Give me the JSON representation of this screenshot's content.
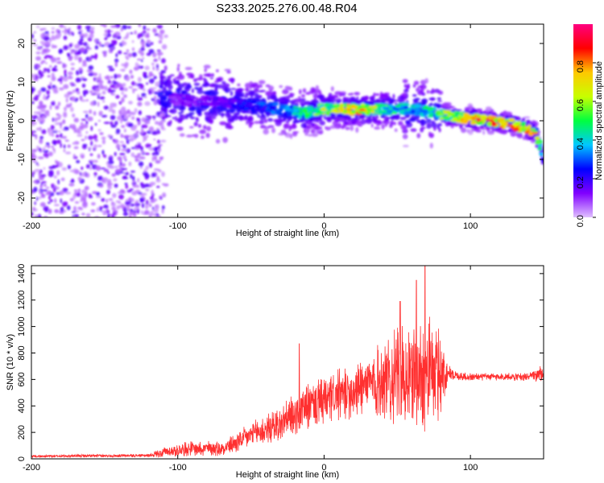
{
  "page_title": "S233.2025.276.00.48.R04",
  "chart_data": [
    {
      "type": "heatmap",
      "xlabel": "Height of straight line (km)",
      "ylabel": "Frequency (Hz)",
      "xlim": [
        -200,
        150
      ],
      "ylim": [
        -25,
        25
      ],
      "x_ticks": [
        -200,
        -100,
        0,
        100
      ],
      "x_tick_labels": [
        "-200",
        "-100",
        "0",
        "100"
      ],
      "y_ticks": [
        -20,
        -10,
        0,
        10,
        20
      ],
      "y_tick_labels": [
        "-20",
        "-10",
        "0",
        "10",
        "20"
      ],
      "ridge": {
        "x": [
          -110,
          -90,
          -70,
          -50,
          -30,
          -15,
          0,
          20,
          40,
          60,
          75,
          90,
          110,
          130,
          145,
          150
        ],
        "freq": [
          6,
          5,
          5,
          4,
          3,
          2,
          3,
          3,
          3,
          3,
          2,
          1,
          0,
          -1,
          -3,
          -10
        ],
        "amplitude": [
          0.15,
          0.15,
          0.2,
          0.3,
          0.35,
          0.5,
          0.7,
          0.9,
          0.6,
          0.45,
          0.55,
          0.75,
          0.95,
          0.9,
          0.8,
          0.3
        ]
      },
      "colorbar": {
        "label": "Normalized spectral amplitude",
        "range": [
          0,
          1
        ],
        "ticks": [
          0,
          0.2,
          0.4,
          0.6,
          0.8
        ],
        "tick_labels": [
          "0.0",
          "0.2",
          "0.4",
          "0.6",
          "0.8"
        ],
        "colors": [
          "#e0c0ff",
          "#8000ff",
          "#0000ff",
          "#00c8ff",
          "#00ff40",
          "#c8ff00",
          "#ffc800",
          "#ff0000",
          "#ff0080"
        ]
      }
    },
    {
      "type": "line",
      "xlabel": "Height of straight line (km)",
      "ylabel": "SNR (10 * v/v)",
      "xlim": [
        -200,
        150
      ],
      "ylim": [
        0,
        1460
      ],
      "x_ticks": [
        -200,
        -100,
        0,
        100
      ],
      "x_tick_labels": [
        "-200",
        "-100",
        "0",
        "100"
      ],
      "y_ticks": [
        0,
        200,
        400,
        600,
        800,
        1000,
        1200,
        1400
      ],
      "y_tick_labels": [
        "0",
        "200",
        "400",
        "600",
        "800",
        "1000",
        "1200",
        "1400"
      ],
      "series": [
        {
          "color": "#ff3030",
          "envelope": {
            "x": [
              -200,
              -120,
              -110,
              -90,
              -70,
              -60,
              -50,
              -40,
              -30,
              -20,
              -10,
              0,
              10,
              20,
              30,
              40,
              50,
              60,
              70,
              80,
              85,
              90,
              100,
              120,
              140,
              150
            ],
            "base": [
              20,
              25,
              50,
              80,
              80,
              120,
              180,
              220,
              260,
              330,
              400,
              430,
              480,
              520,
              560,
              600,
              620,
              640,
              650,
              640,
              650,
              630,
              620,
              620,
              620,
              640
            ],
            "spread": [
              10,
              12,
              40,
              60,
              60,
              80,
              100,
              120,
              140,
              170,
              180,
              190,
              200,
              220,
              240,
              300,
              380,
              420,
              450,
              350,
              60,
              40,
              30,
              30,
              30,
              80
            ]
          },
          "peaks": [
            {
              "x": -17,
              "y": 870
            },
            {
              "x": 52,
              "y": 1190
            },
            {
              "x": 69,
              "y": 1460
            },
            {
              "x": 63,
              "y": 1350
            }
          ]
        }
      ]
    }
  ]
}
